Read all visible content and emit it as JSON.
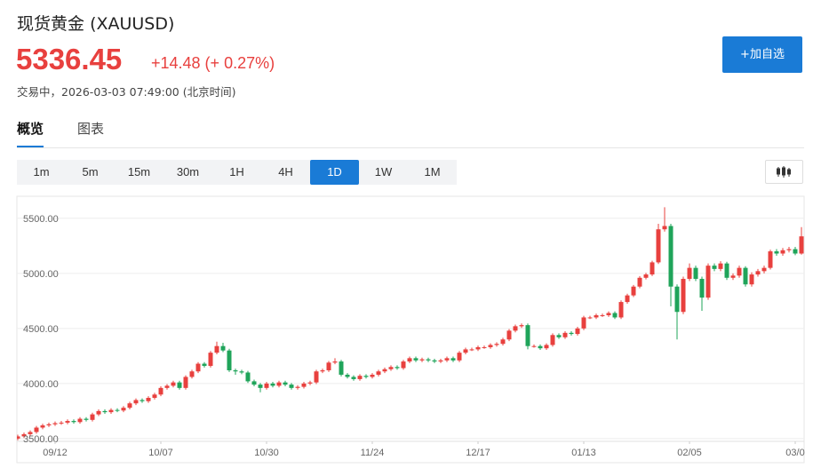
{
  "header": {
    "name": "现货黄金",
    "symbol": "(XAUUSD)",
    "price": "5336.45",
    "change": "+14.48 (+ 0.27%)",
    "status": "交易中，2026-03-03 07:49:00 (北京时间)",
    "watch_button": "+加自选"
  },
  "tabs": [
    "概览",
    "图表"
  ],
  "periods": [
    "1m",
    "5m",
    "15m",
    "30m",
    "1H",
    "4H",
    "1D",
    "1W",
    "1M"
  ],
  "active_period": "1D",
  "chart_data": {
    "type": "candlestick",
    "up_color": "#e8403e",
    "down_color": "#1fa45a",
    "grid": true,
    "ylim": [
      3475,
      5700
    ],
    "yticks": [
      {
        "value": 3500,
        "label": "3500.00"
      },
      {
        "value": 4000,
        "label": "4000.00"
      },
      {
        "value": 4500,
        "label": "4500.00"
      },
      {
        "value": 5000,
        "label": "5000.00"
      },
      {
        "value": 5500,
        "label": "5500.00"
      }
    ],
    "xticks": [
      {
        "value": 6,
        "label": "09/12"
      },
      {
        "value": 23,
        "label": "10/07"
      },
      {
        "value": 40,
        "label": "10/30"
      },
      {
        "value": 57,
        "label": "11/24"
      },
      {
        "value": 74,
        "label": "12/17"
      },
      {
        "value": 91,
        "label": "01/13"
      },
      {
        "value": 108,
        "label": "02/05"
      },
      {
        "value": 125,
        "label": "03/0"
      }
    ],
    "open": [
      3500,
      3520,
      3540,
      3560,
      3600,
      3620,
      3630,
      3640,
      3645,
      3660,
      3650,
      3680,
      3670,
      3720,
      3750,
      3740,
      3760,
      3755,
      3780,
      3820,
      3850,
      3840,
      3870,
      3900,
      3960,
      3980,
      4010,
      3960,
      4060,
      4110,
      4180,
      4160,
      4280,
      4340,
      4300,
      4120,
      4110,
      4100,
      4020,
      3990,
      3960,
      4000,
      3980,
      4010,
      3990,
      3960,
      3970,
      4000,
      4010,
      4110,
      4120,
      4190,
      4200,
      4080,
      4060,
      4040,
      4070,
      4060,
      4080,
      4110,
      4130,
      4150,
      4140,
      4200,
      4230,
      4210,
      4220,
      4210,
      4200,
      4210,
      4230,
      4210,
      4280,
      4310,
      4310,
      4330,
      4330,
      4350,
      4360,
      4400,
      4480,
      4520,
      4530,
      4340,
      4340,
      4320,
      4350,
      4440,
      4420,
      4460,
      4450,
      4500,
      4600,
      4600,
      4620,
      4620,
      4640,
      4600,
      4740,
      4800,
      4880,
      4960,
      4990,
      5100,
      5400,
      5430,
      4880,
      4650,
      4950,
      5050,
      4950,
      4780,
      5070,
      5040,
      5090,
      4960,
      4980,
      5050,
      4900,
      4990,
      5020,
      5050,
      5200,
      5180,
      5210,
      5220,
      5180
    ],
    "high": [
      3535,
      3555,
      3575,
      3615,
      3635,
      3645,
      3655,
      3660,
      3675,
      3675,
      3695,
      3695,
      3735,
      3765,
      3765,
      3775,
      3775,
      3795,
      3835,
      3865,
      3865,
      3885,
      3915,
      3975,
      3995,
      4025,
      4025,
      4075,
      4125,
      4195,
      4195,
      4295,
      4380,
      4370,
      4315,
      4135,
      4125,
      4115,
      4035,
      4005,
      4015,
      4015,
      4025,
      4025,
      4005,
      3985,
      4015,
      4025,
      4125,
      4135,
      4205,
      4230,
      4215,
      4095,
      4075,
      4085,
      4085,
      4095,
      4125,
      4145,
      4165,
      4165,
      4215,
      4245,
      4245,
      4235,
      4235,
      4225,
      4225,
      4245,
      4245,
      4295,
      4325,
      4325,
      4345,
      4345,
      4365,
      4375,
      4415,
      4495,
      4535,
      4545,
      4545,
      4355,
      4355,
      4365,
      4455,
      4455,
      4475,
      4475,
      4515,
      4615,
      4615,
      4635,
      4635,
      4655,
      4655,
      4755,
      4815,
      4895,
      4975,
      5005,
      5115,
      5450,
      5600,
      5450,
      4900,
      4970,
      5090,
      5070,
      4970,
      5090,
      5090,
      5110,
      5105,
      5000,
      5070,
      5065,
      5010,
      5040,
      5070,
      5215,
      5220,
      5230,
      5240,
      5240,
      5420
    ],
    "low": [
      3485,
      3505,
      3525,
      3545,
      3585,
      3605,
      3615,
      3625,
      3630,
      3635,
      3635,
      3655,
      3655,
      3705,
      3725,
      3725,
      3740,
      3740,
      3765,
      3805,
      3825,
      3825,
      3855,
      3885,
      3945,
      3965,
      3945,
      3945,
      4045,
      4095,
      4145,
      4145,
      4265,
      4285,
      4105,
      4080,
      4085,
      4005,
      3975,
      3920,
      3945,
      3965,
      3965,
      3975,
      3945,
      3945,
      3955,
      3985,
      3995,
      4095,
      4105,
      4175,
      4065,
      4045,
      4025,
      4025,
      4045,
      4045,
      4065,
      4095,
      4115,
      4125,
      4125,
      4185,
      4195,
      4195,
      4195,
      4185,
      4185,
      4195,
      4195,
      4195,
      4265,
      4295,
      4295,
      4315,
      4315,
      4335,
      4345,
      4385,
      4465,
      4505,
      4310,
      4325,
      4305,
      4305,
      4335,
      4405,
      4405,
      4435,
      4435,
      4485,
      4585,
      4585,
      4605,
      4605,
      4585,
      4585,
      4725,
      4785,
      4865,
      4945,
      4975,
      5085,
      5380,
      4700,
      4400,
      4630,
      4930,
      4930,
      4660,
      4760,
      5020,
      5020,
      4940,
      4940,
      4960,
      4880,
      4880,
      4970,
      5000,
      5035,
      5160,
      5160,
      5190,
      5165,
      5170
    ],
    "close": [
      3520,
      3540,
      3560,
      3600,
      3620,
      3630,
      3640,
      3645,
      3660,
      3650,
      3680,
      3670,
      3720,
      3750,
      3740,
      3760,
      3755,
      3780,
      3820,
      3850,
      3840,
      3870,
      3900,
      3960,
      3980,
      4010,
      3960,
      4060,
      4110,
      4180,
      4160,
      4280,
      4340,
      4300,
      4120,
      4110,
      4100,
      4020,
      3990,
      3960,
      4000,
      3980,
      4010,
      3990,
      3960,
      3970,
      4000,
      4010,
      4110,
      4120,
      4190,
      4200,
      4080,
      4060,
      4040,
      4070,
      4060,
      4080,
      4110,
      4130,
      4150,
      4140,
      4200,
      4230,
      4210,
      4220,
      4210,
      4200,
      4210,
      4230,
      4210,
      4280,
      4310,
      4310,
      4330,
      4330,
      4350,
      4360,
      4400,
      4480,
      4520,
      4530,
      4340,
      4340,
      4320,
      4350,
      4440,
      4420,
      4460,
      4450,
      4500,
      4600,
      4600,
      4620,
      4620,
      4640,
      4600,
      4740,
      4800,
      4880,
      4960,
      4990,
      5100,
      5400,
      5430,
      4880,
      4650,
      4950,
      5050,
      4950,
      4780,
      5070,
      5040,
      5090,
      4960,
      4980,
      5050,
      4900,
      4990,
      5020,
      5050,
      5200,
      5180,
      5210,
      5220,
      5180,
      5336
    ]
  }
}
